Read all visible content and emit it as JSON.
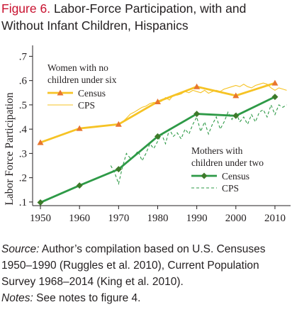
{
  "figure": {
    "label": "Figure 6.",
    "title": "Labor-Force Participation, with and Without Infant Children, Hispanics"
  },
  "chart_data": {
    "type": "line",
    "ylabel": "Labor Force Participation",
    "xlim": [
      1948,
      2014
    ],
    "ylim": [
      0.085,
      0.745
    ],
    "x_ticks": [
      1950,
      1960,
      1970,
      1980,
      1990,
      2000,
      2010
    ],
    "y_ticks": [
      0.1,
      0.2,
      0.3,
      0.4,
      0.5,
      0.6,
      0.7
    ],
    "y_tick_labels": [
      ".1",
      ".2",
      ".3",
      ".4",
      ".5",
      ".6",
      ".7"
    ],
    "groups": [
      {
        "legend_title": [
          "Women with no",
          "children under six"
        ],
        "color": "#f6c325",
        "series": [
          {
            "name": "Census",
            "style": "solid-marker",
            "x": [
              1950,
              1960,
              1970,
              1980,
              1990,
              2000,
              2010
            ],
            "y": [
              0.345,
              0.403,
              0.42,
              0.513,
              0.575,
              0.538,
              0.59
            ]
          },
          {
            "name": "CPS",
            "style": "thin",
            "x": [
              1968,
              1969,
              1970,
              1971,
              1972,
              1973,
              1974,
              1975,
              1976,
              1977,
              1978,
              1979,
              1980,
              1981,
              1982,
              1983,
              1984,
              1985,
              1986,
              1987,
              1988,
              1989,
              1990,
              1991,
              1992,
              1993,
              1994,
              1995,
              1996,
              1997,
              1998,
              1999,
              2000,
              2001,
              2002,
              2003,
              2004,
              2005,
              2006,
              2007,
              2008,
              2009,
              2010,
              2011,
              2012,
              2013
            ],
            "y": [
              0.415,
              0.418,
              0.42,
              0.43,
              0.445,
              0.462,
              0.47,
              0.48,
              0.49,
              0.495,
              0.505,
              0.51,
              0.51,
              0.515,
              0.53,
              0.52,
              0.54,
              0.54,
              0.545,
              0.555,
              0.55,
              0.56,
              0.555,
              0.55,
              0.56,
              0.548,
              0.555,
              0.56,
              0.555,
              0.565,
              0.57,
              0.575,
              0.58,
              0.575,
              0.585,
              0.575,
              0.57,
              0.58,
              0.585,
              0.59,
              0.585,
              0.57,
              0.56,
              0.57,
              0.565,
              0.56
            ]
          }
        ]
      },
      {
        "legend_title": [
          "Mothers with",
          "children under two"
        ],
        "color": "#2e9a47",
        "series": [
          {
            "name": "Census",
            "style": "solid-marker",
            "x": [
              1950,
              1960,
              1970,
              1980,
              1990,
              2000,
              2010
            ],
            "y": [
              0.098,
              0.168,
              0.235,
              0.37,
              0.463,
              0.455,
              0.533
            ]
          },
          {
            "name": "CPS",
            "style": "dashed",
            "x": [
              1968,
              1969,
              1970,
              1971,
              1972,
              1973,
              1974,
              1975,
              1976,
              1977,
              1978,
              1979,
              1980,
              1981,
              1982,
              1983,
              1984,
              1985,
              1986,
              1987,
              1988,
              1989,
              1990,
              1991,
              1992,
              1993,
              1994,
              1995,
              1996,
              1997,
              1998,
              1999,
              2000,
              2001,
              2002,
              2003,
              2004,
              2005,
              2006,
              2007,
              2008,
              2009,
              2010,
              2011,
              2012,
              2013
            ],
            "y": [
              0.25,
              0.22,
              0.175,
              0.245,
              0.3,
              0.28,
              0.29,
              0.31,
              0.27,
              0.3,
              0.34,
              0.32,
              0.35,
              0.38,
              0.34,
              0.4,
              0.37,
              0.385,
              0.36,
              0.4,
              0.38,
              0.42,
              0.45,
              0.39,
              0.43,
              0.38,
              0.42,
              0.45,
              0.4,
              0.43,
              0.47,
              0.44,
              0.47,
              0.43,
              0.45,
              0.42,
              0.46,
              0.43,
              0.47,
              0.48,
              0.45,
              0.5,
              0.46,
              0.5,
              0.49,
              0.5
            ]
          }
        ]
      }
    ]
  },
  "footer": {
    "source_label": "Source:",
    "source_text": "Author’s compilation based on U.S. Censuses 1950–1990 (Ruggles et al. 2010), Current Population Survey 1968–2014 (King et al. 2010).",
    "notes_label": "Notes:",
    "notes_text": "See notes to figure 4."
  }
}
